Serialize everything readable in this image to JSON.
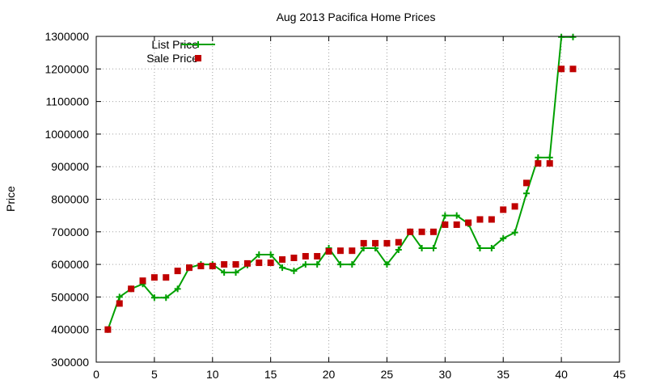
{
  "chart_data": {
    "type": "line",
    "title": "Aug 2013 Pacifica Home Prices",
    "xlabel": "",
    "ylabel": "Price",
    "xlim": [
      0,
      45
    ],
    "ylim": [
      300000,
      1300000
    ],
    "x_ticks": [
      0,
      5,
      10,
      15,
      20,
      25,
      30,
      35,
      40,
      45
    ],
    "y_ticks": [
      300000,
      400000,
      500000,
      600000,
      700000,
      800000,
      900000,
      1000000,
      1100000,
      1200000,
      1300000
    ],
    "grid": true,
    "legend_position": "top-left",
    "series": [
      {
        "name": "List Price",
        "style": "linespoints",
        "color": "#00a000",
        "x": [
          1,
          2,
          3,
          4,
          5,
          6,
          7,
          8,
          9,
          10,
          11,
          12,
          13,
          14,
          15,
          16,
          17,
          18,
          19,
          20,
          21,
          22,
          23,
          24,
          25,
          26,
          27,
          28,
          29,
          30,
          31,
          32,
          33,
          34,
          35,
          36,
          37,
          38,
          39,
          40,
          41
        ],
        "y": [
          400000,
          500000,
          525000,
          540000,
          498000,
          498000,
          525000,
          590000,
          600000,
          600000,
          575000,
          575000,
          598000,
          630000,
          630000,
          590000,
          580000,
          600000,
          600000,
          650000,
          600000,
          600000,
          650000,
          650000,
          600000,
          645000,
          700000,
          650000,
          650000,
          750000,
          750000,
          725000,
          650000,
          650000,
          680000,
          698000,
          818000,
          928000,
          928000,
          1298000,
          1298000
        ]
      },
      {
        "name": "Sale Price",
        "style": "points",
        "color": "#c00000",
        "x": [
          1,
          2,
          3,
          4,
          5,
          6,
          7,
          8,
          9,
          10,
          11,
          12,
          13,
          14,
          15,
          16,
          17,
          18,
          19,
          20,
          21,
          22,
          23,
          24,
          25,
          26,
          27,
          28,
          29,
          30,
          31,
          32,
          33,
          34,
          35,
          36,
          37,
          38,
          39,
          40,
          41
        ],
        "y": [
          400000,
          480000,
          525000,
          550000,
          560000,
          560000,
          580000,
          590000,
          595000,
          595000,
          600000,
          600000,
          603000,
          605000,
          605000,
          615000,
          620000,
          625000,
          625000,
          640000,
          642000,
          642000,
          665000,
          665000,
          665000,
          668000,
          700000,
          700000,
          700000,
          722000,
          722000,
          728000,
          738000,
          738000,
          768000,
          778000,
          850000,
          910000,
          910000,
          1200000,
          1200000
        ]
      }
    ]
  }
}
